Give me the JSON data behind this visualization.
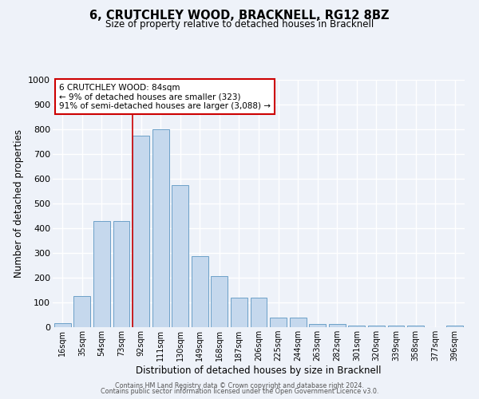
{
  "title": "6, CRUTCHLEY WOOD, BRACKNELL, RG12 8BZ",
  "subtitle": "Size of property relative to detached houses in Bracknell",
  "xlabel": "Distribution of detached houses by size in Bracknell",
  "ylabel": "Number of detached properties",
  "bar_labels": [
    "16sqm",
    "35sqm",
    "54sqm",
    "73sqm",
    "92sqm",
    "111sqm",
    "130sqm",
    "149sqm",
    "168sqm",
    "187sqm",
    "206sqm",
    "225sqm",
    "244sqm",
    "263sqm",
    "282sqm",
    "301sqm",
    "320sqm",
    "339sqm",
    "358sqm",
    "377sqm",
    "396sqm"
  ],
  "bar_values": [
    15,
    125,
    428,
    428,
    775,
    800,
    575,
    288,
    208,
    120,
    120,
    40,
    40,
    12,
    12,
    5,
    5,
    5,
    5,
    0,
    8
  ],
  "bar_color": "#c5d8ed",
  "bar_edge_color": "#6ca0c8",
  "annotation_title": "6 CRUTCHLEY WOOD: 84sqm",
  "annotation_line1": "← 9% of detached houses are smaller (323)",
  "annotation_line2": "91% of semi-detached houses are larger (3,088) →",
  "annotation_box_color": "#ffffff",
  "annotation_box_edge_color": "#cc0000",
  "vline_x_idx": 3.58,
  "ylim": [
    0,
    1000
  ],
  "yticks": [
    0,
    100,
    200,
    300,
    400,
    500,
    600,
    700,
    800,
    900,
    1000
  ],
  "background_color": "#eef2f9",
  "grid_color": "#ffffff",
  "footer_line1": "Contains HM Land Registry data © Crown copyright and database right 2024.",
  "footer_line2": "Contains public sector information licensed under the Open Government Licence v3.0."
}
